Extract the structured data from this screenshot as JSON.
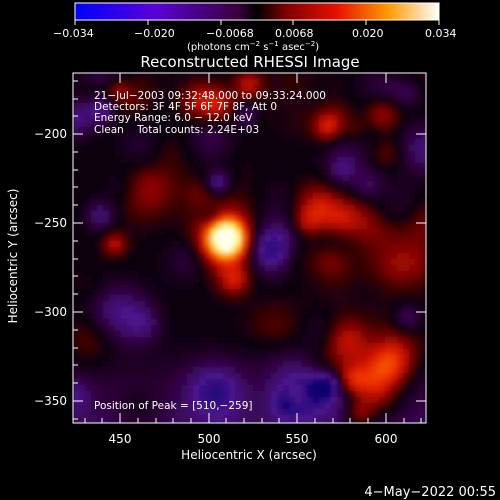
{
  "colorbar": {
    "ticks": [
      "−0.034",
      "−0.020",
      "−0.0068",
      "0.0068",
      "0.020",
      "0.034"
    ],
    "units_prefix": "(photons cm",
    "units_exp1": "−2",
    "units_mid": " s",
    "units_exp2": "−1",
    "units_mid2": " asec",
    "units_exp3": "−2",
    "units_suffix": ")"
  },
  "plot": {
    "title": "Reconstructed RHESSI Image",
    "xlabel": "Heliocentric X (arcsec)",
    "ylabel": "Heliocentric Y (arcsec)",
    "xticks": [
      "450",
      "500",
      "550",
      "600"
    ],
    "yticks": [
      "−200",
      "−250",
      "−300",
      "−350"
    ]
  },
  "annotation": {
    "time_range": "21−Jul−2003 09:32:48.000 to 09:33:24.000",
    "detectors": "Detectors: 3F 4F 5F 6F 7F 8F, Att 0",
    "energy_range": "Energy Range: 6.0 − 12.0 keV",
    "clean": "Clean    Total counts: 2.24E+03",
    "peak_position": "Position of Peak = [510,−259]"
  },
  "footer": {
    "timestamp": "4−May−2022 00:55"
  }
}
